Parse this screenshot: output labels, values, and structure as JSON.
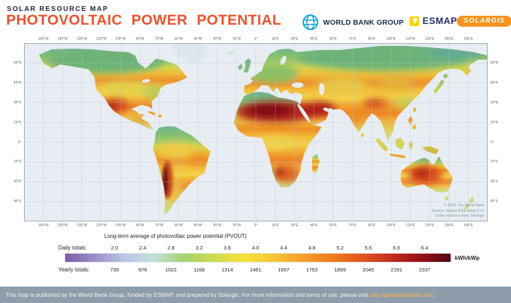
{
  "colors": {
    "accent_orange": "#F0502A",
    "solargis_orange": "#F7941D",
    "esmap_yellow": "#FFD100",
    "worldbank_blue": "#009FDA",
    "footer_bg": "#8E9DAB",
    "footer_link": "#FFB347",
    "ocean": "#E7EDF2",
    "palette": [
      "#7A5CA8",
      "#9A8FC6",
      "#B9C6E6",
      "#C3E0D8",
      "#A5D271",
      "#CCDC4E",
      "#F5E337",
      "#F8C735",
      "#F5A02B",
      "#EF7D20",
      "#E4541D",
      "#C62D1A",
      "#941018",
      "#54060F"
    ]
  },
  "header": {
    "kicker": "SOLAR RESOURCE MAP",
    "title": "PHOTOVOLTAIC POWER POTENTIAL",
    "world_bank_label": "WORLD BANK GROUP",
    "esmap_label": "ESMAP",
    "solargis_label": "SOLARGIS"
  },
  "map": {
    "lon_labels": [
      "165°W",
      "150°W",
      "135°W",
      "120°W",
      "105°W",
      "90°W",
      "75°W",
      "60°W",
      "45°W",
      "30°W",
      "15°W",
      "0°",
      "15°E",
      "30°E",
      "45°E",
      "60°E",
      "75°E",
      "90°E",
      "105°E",
      "120°E",
      "135°E",
      "150°E",
      "165°E"
    ],
    "lat_labels": [
      "60°N",
      "45°N",
      "30°N",
      "15°N",
      "0°",
      "15°S",
      "30°S",
      "45°S"
    ],
    "copyright_lines": [
      "© 2025 The World Bank",
      "Source: Global Solar Atlas 2.12",
      "Solar resource data: Solargis"
    ]
  },
  "legend": {
    "title": "Long-term average of photovoltaic power potential (PVOUT)",
    "daily_label": "Daily totals:",
    "yearly_label": "Yearly totals:",
    "unit": "kWh/kWp",
    "daily_ticks": [
      "2.0",
      "2.4",
      "2.8",
      "3.2",
      "3.6",
      "4.0",
      "4.4",
      "4.8",
      "5.2",
      "5.6",
      "6.0",
      "6.4"
    ],
    "yearly_ticks": [
      "730",
      "876",
      "1022",
      "1168",
      "1314",
      "1461",
      "1607",
      "1753",
      "1899",
      "2045",
      "2191",
      "2337"
    ]
  },
  "footer": {
    "text": "This map is published by the World Bank Group, funded by ESMAP, and prepared by Solargis. For more information and terms of use, please visit ",
    "link": "http://globalsolaratlas.info",
    "suffix": "."
  }
}
